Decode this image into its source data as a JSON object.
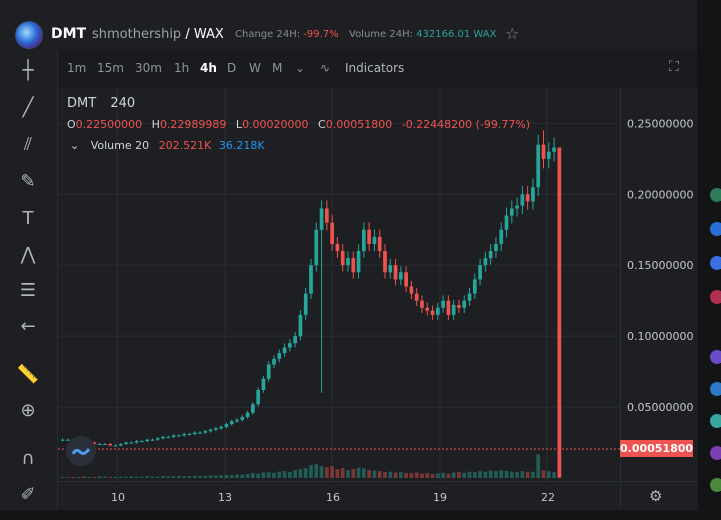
{
  "header": {
    "symbol": "DMT",
    "pair_base": "shmothership",
    "pair_sep": "/",
    "pair_quote": "WAX",
    "change_label": "Change 24H:",
    "change_value": "-99.7%",
    "volume_label": "Volume 24H:",
    "volume_value": "432166.01 WAX"
  },
  "intervals": [
    "1m",
    "15m",
    "30m",
    "1h",
    "4h",
    "D",
    "W",
    "M"
  ],
  "active_interval": "4h",
  "indicators_label": "Indicators",
  "legend": {
    "symbol": "DMT",
    "interval": "240",
    "open_label": "O",
    "open": "0.22500000",
    "high_label": "H",
    "high": "0.22989989",
    "low_label": "L",
    "low": "0.00020000",
    "close_label": "C",
    "close": "0.00051800",
    "change": "-0.22448200 (-99.77%)",
    "volume_label": "Volume 20",
    "volume_value": "202.521K",
    "volume_ma": "36.218K"
  },
  "last_price_label": "0.00051800",
  "colors": {
    "up": "#26a69a",
    "down": "#ef5350",
    "background": "#1e1f22"
  },
  "chart_data": {
    "type": "candlestick",
    "x_ticks": [
      "10",
      "13",
      "16",
      "19",
      "22"
    ],
    "y_ticks": [
      "0.05000000",
      "0.10000000",
      "0.15000000",
      "0.20000000",
      "0.25000000"
    ],
    "ylim": [
      0,
      0.27
    ],
    "last_price": 0.000518,
    "closes": [
      0.027,
      0.027,
      0.026,
      0.026,
      0.025,
      0.025,
      0.024,
      0.024,
      0.024,
      0.023,
      0.023,
      0.024,
      0.025,
      0.025,
      0.026,
      0.026,
      0.027,
      0.027,
      0.028,
      0.029,
      0.029,
      0.03,
      0.03,
      0.031,
      0.031,
      0.032,
      0.032,
      0.033,
      0.034,
      0.035,
      0.036,
      0.038,
      0.04,
      0.041,
      0.043,
      0.046,
      0.052,
      0.062,
      0.07,
      0.08,
      0.084,
      0.088,
      0.092,
      0.095,
      0.1,
      0.115,
      0.13,
      0.15,
      0.175,
      0.19,
      0.18,
      0.165,
      0.16,
      0.15,
      0.155,
      0.145,
      0.16,
      0.175,
      0.165,
      0.17,
      0.16,
      0.145,
      0.15,
      0.14,
      0.145,
      0.135,
      0.13,
      0.125,
      0.12,
      0.118,
      0.115,
      0.12,
      0.125,
      0.115,
      0.122,
      0.12,
      0.125,
      0.13,
      0.14,
      0.15,
      0.155,
      0.16,
      0.165,
      0.175,
      0.185,
      0.19,
      0.192,
      0.2,
      0.195,
      0.205,
      0.235,
      0.225,
      0.23,
      0.233,
      0.000518
    ],
    "volumes": [
      0.5,
      0.4,
      0.6,
      0.5,
      0.7,
      0.5,
      0.6,
      0.8,
      0.7,
      0.5,
      0.6,
      0.6,
      0.7,
      0.8,
      0.6,
      0.7,
      0.9,
      0.8,
      0.7,
      1.0,
      0.8,
      0.9,
      1.1,
      0.9,
      1.0,
      1.2,
      1.0,
      1.1,
      1.3,
      1.2,
      1.5,
      1.6,
      1.4,
      1.8,
      1.7,
      2.0,
      2.5,
      2.2,
      2.8,
      3.0,
      2.6,
      3.2,
      3.5,
      3.0,
      4.0,
      4.5,
      5.0,
      6.5,
      7.0,
      6.0,
      5.5,
      6.0,
      4.5,
      5.0,
      4.0,
      4.5,
      5.2,
      4.8,
      4.0,
      3.8,
      3.5,
      3.0,
      3.2,
      2.8,
      3.0,
      2.6,
      2.5,
      2.8,
      2.2,
      2.5,
      2.0,
      2.4,
      2.6,
      2.2,
      2.8,
      3.0,
      2.6,
      3.2,
      3.0,
      3.5,
      3.2,
      3.8,
      3.5,
      4.0,
      3.6,
      3.2,
      3.0,
      3.5,
      3.0,
      3.2,
      12.0,
      4.0,
      3.5,
      3.0,
      38.0
    ]
  }
}
